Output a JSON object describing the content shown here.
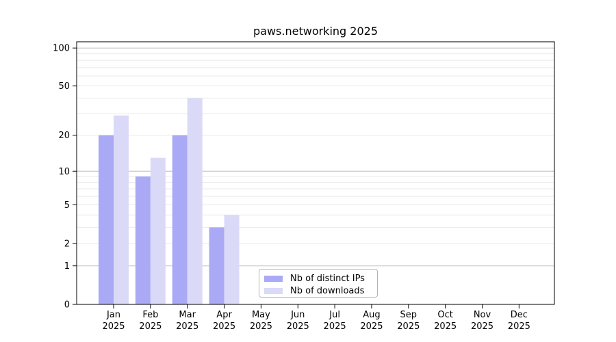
{
  "chart_data": {
    "type": "bar",
    "title": "paws.networking 2025",
    "categories": [
      "Jan",
      "Feb",
      "Mar",
      "Apr",
      "May",
      "Jun",
      "Jul",
      "Aug",
      "Sep",
      "Oct",
      "Nov",
      "Dec"
    ],
    "category_year": "2025",
    "series": [
      {
        "name": "Nb of distinct IPs",
        "color": "#a9a9f5",
        "values": [
          20,
          9,
          20,
          3,
          0,
          0,
          0,
          0,
          0,
          0,
          0,
          0
        ]
      },
      {
        "name": "Nb of downloads",
        "color": "#dadaf8",
        "values": [
          29,
          13,
          40,
          4,
          0,
          0,
          0,
          0,
          0,
          0,
          0,
          0
        ]
      }
    ],
    "xlabel": "",
    "ylabel": "",
    "yscale": "log1p",
    "ylim": [
      0,
      112
    ],
    "ytick_labels": [
      "0",
      "1",
      "2",
      "5",
      "10",
      "20",
      "50",
      "100"
    ],
    "ytick_values": [
      0,
      1,
      2,
      5,
      10,
      20,
      50,
      100
    ],
    "minor_gridline_values": [
      2,
      3,
      4,
      5,
      6,
      7,
      8,
      9,
      10,
      20,
      30,
      40,
      50,
      60,
      70,
      80,
      90,
      100,
      110
    ],
    "major_gridline_values": [
      1,
      10,
      100
    ],
    "grid": true,
    "legend_position": "bottom-center-inside",
    "colors": {
      "axis": "#000000",
      "major_grid": "#c0c0c0",
      "minor_grid": "#e9e9e9",
      "text": "#000000",
      "legend_border": "#b3b3b3",
      "background": "#ffffff"
    }
  }
}
